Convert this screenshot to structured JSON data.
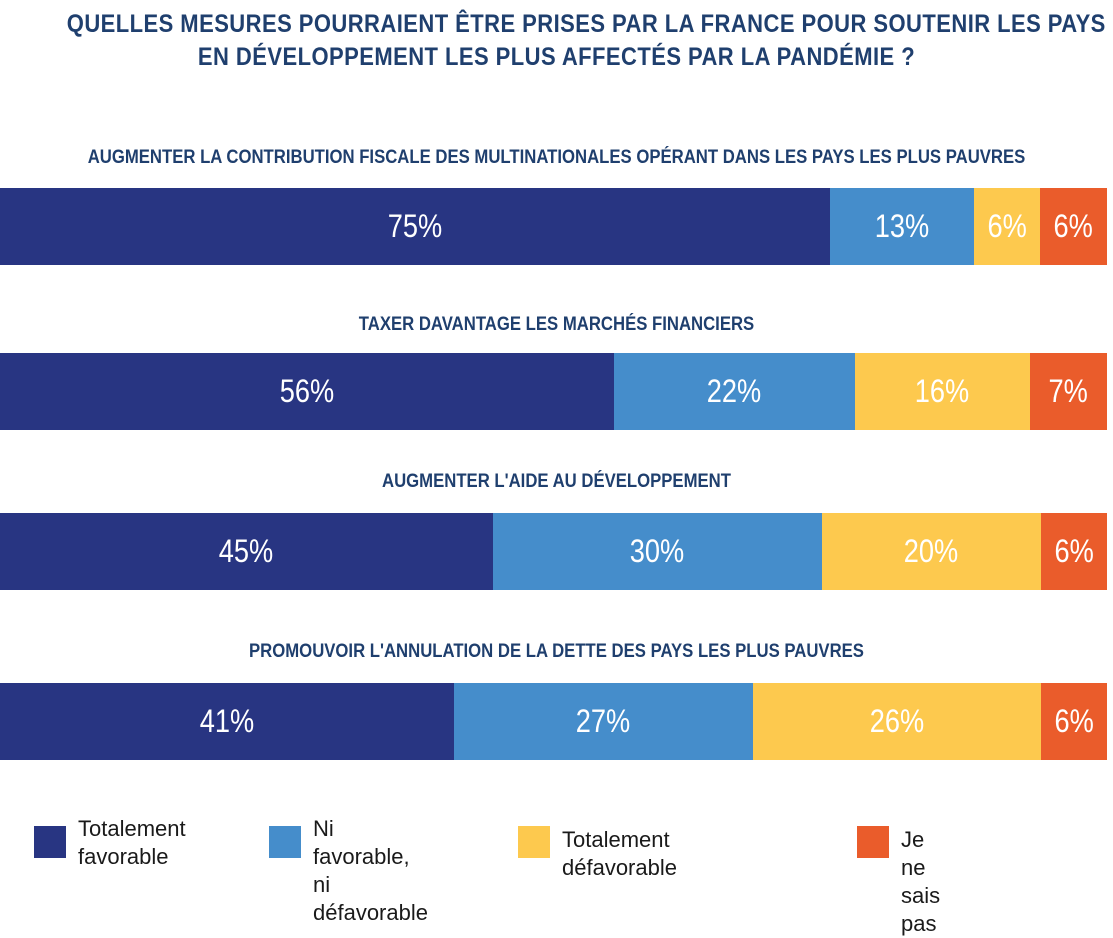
{
  "colors": {
    "favorable": "#283582",
    "neutral": "#458dcb",
    "defavorable": "#fdc94e",
    "nsp": "#ea5c2b",
    "title": "#1f3f6e"
  },
  "chart_data": {
    "type": "bar",
    "orientation": "horizontal",
    "stacked": true,
    "title_lines": [
      "QUELLES MESURES POURRAIENT ÊTRE PRISES PAR LA FRANCE POUR SOUTENIR LES PAYS",
      "EN DÉVELOPPEMENT LES PLUS AFFECTÉS PAR LA PANDÉMIE ?"
    ],
    "categories": [
      "AUGMENTER LA CONTRIBUTION FISCALE DES MULTINATIONALES OPÉRANT DANS LES PAYS LES PLUS PAUVRES",
      "TAXER DAVANTAGE LES MARCHÉS FINANCIERS",
      "AUGMENTER L'AIDE AU DÉVELOPPEMENT",
      "PROMOUVOIR L'ANNULATION DE LA DETTE DES PAYS LES PLUS PAUVRES"
    ],
    "series": [
      {
        "name": "Totalement\nfavorable",
        "values": [
          75,
          56,
          45,
          41
        ],
        "labels": [
          "75%",
          "56%",
          "45%",
          "41%"
        ]
      },
      {
        "name": "Ni favorable,\nni défavorable",
        "values": [
          13,
          22,
          30,
          27
        ],
        "labels": [
          "13%",
          "22%",
          "30%",
          "27%"
        ]
      },
      {
        "name": "Totalement défavorable",
        "values": [
          6,
          16,
          20,
          26
        ],
        "labels": [
          "6%",
          "16%",
          "20%",
          "26%"
        ]
      },
      {
        "name": "Je ne sais pas",
        "values": [
          6,
          7,
          6,
          6
        ],
        "labels": [
          "6%",
          "7%",
          "6%",
          "6%"
        ]
      }
    ],
    "xlim": [
      0,
      100
    ],
    "grid": false,
    "legend": "bottom"
  }
}
